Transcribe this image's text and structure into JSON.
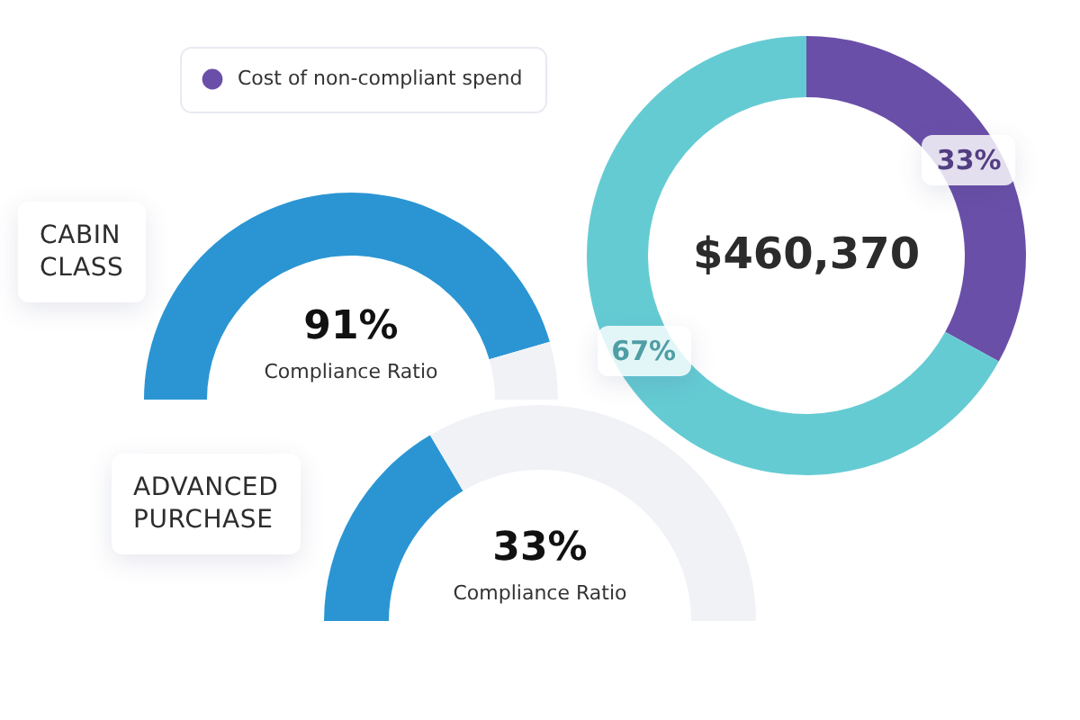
{
  "chart_data": [
    {
      "type": "donut",
      "categories": [
        "Cost of non-compliant spend",
        null
      ],
      "values": [
        33,
        67
      ],
      "colors": [
        "#6a4fa8",
        "#65cbd3"
      ],
      "value_labels": [
        "33%",
        "67%"
      ],
      "annotations": [
        "$460,370"
      ],
      "legend": "top left"
    },
    {
      "type": "donut",
      "title": "CABIN CLASS",
      "categories": [
        null,
        null
      ],
      "values": [
        91,
        9
      ],
      "colors": [
        "#2b95d3",
        "#f1f2f6"
      ],
      "annotations": [
        "91%",
        "Compliance Ratio"
      ]
    },
    {
      "type": "donut",
      "title": "ADVANCED PURCHASE",
      "categories": [
        null,
        null
      ],
      "values": [
        33,
        67
      ],
      "colors": [
        "#2b95d3",
        "#f1f2f6"
      ],
      "annotations": [
        "33%",
        "Compliance Ratio"
      ]
    }
  ]
}
